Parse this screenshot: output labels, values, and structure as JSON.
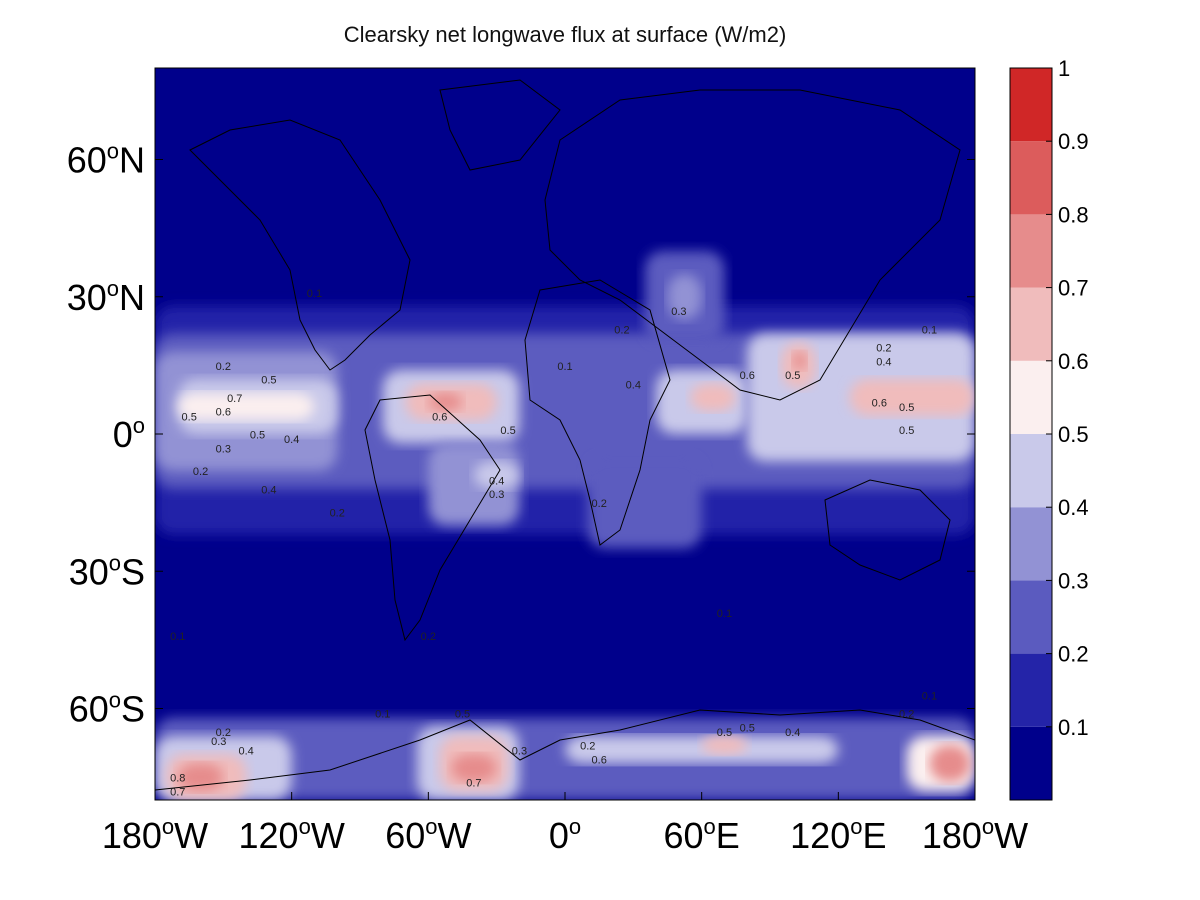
{
  "chart_data": {
    "type": "heatmap",
    "title": "Clearsky net longwave flux at surface (W/m2)",
    "x_ticks": [
      {
        "value": -180,
        "label": "180",
        "suffix": "W"
      },
      {
        "value": -120,
        "label": "120",
        "suffix": "W"
      },
      {
        "value": -60,
        "label": "60",
        "suffix": "W"
      },
      {
        "value": 0,
        "label": "0",
        "suffix": ""
      },
      {
        "value": 60,
        "label": "60",
        "suffix": "E"
      },
      {
        "value": 120,
        "label": "120",
        "suffix": "E"
      },
      {
        "value": 180,
        "label": "180",
        "suffix": "W"
      }
    ],
    "y_ticks": [
      {
        "value": 60,
        "label": "60",
        "suffix": "N"
      },
      {
        "value": 30,
        "label": "30",
        "suffix": "N"
      },
      {
        "value": 0,
        "label": "0",
        "suffix": ""
      },
      {
        "value": -30,
        "label": "30",
        "suffix": "S"
      },
      {
        "value": -60,
        "label": "60",
        "suffix": "S"
      }
    ],
    "xlim": [
      -180,
      180
    ],
    "ylim": [
      -80,
      80
    ],
    "colorbar": {
      "levels": [
        0.1,
        0.2,
        0.3,
        0.4,
        0.5,
        0.6,
        0.7,
        0.8,
        0.9,
        1
      ],
      "labels": [
        "0.1",
        "0.2",
        "0.3",
        "0.4",
        "0.5",
        "0.6",
        "0.7",
        "0.8",
        "0.9",
        "1"
      ],
      "colors": [
        "#00008b",
        "#2424a8",
        "#5b5bbf",
        "#9292d4",
        "#c9c9ea",
        "#fbefef",
        "#f0bcbc",
        "#e68c8c",
        "#dc5c5c",
        "#d02727"
      ]
    },
    "regions": [
      {
        "lon": [
          -180,
          180
        ],
        "lat": [
          -80,
          80
        ],
        "level": 0
      },
      {
        "lon": [
          -180,
          180
        ],
        "lat": [
          -22,
          28
        ],
        "level": 1
      },
      {
        "lon": [
          -180,
          180
        ],
        "lat": [
          -12,
          22
        ],
        "level": 2
      },
      {
        "lon": [
          -180,
          -100
        ],
        "lat": [
          -8,
          18
        ],
        "level": 3
      },
      {
        "lon": [
          -170,
          -100
        ],
        "lat": [
          0,
          12
        ],
        "level": 4
      },
      {
        "lon": [
          -170,
          -110
        ],
        "lat": [
          3,
          9
        ],
        "level": 5
      },
      {
        "lon": [
          -80,
          -20
        ],
        "lat": [
          -2,
          14
        ],
        "level": 4
      },
      {
        "lon": [
          -70,
          -30
        ],
        "lat": [
          3,
          11
        ],
        "level": 6
      },
      {
        "lon": [
          -60,
          -45
        ],
        "lat": [
          5,
          9
        ],
        "level": 7
      },
      {
        "lon": [
          -60,
          -20
        ],
        "lat": [
          -20,
          -2
        ],
        "level": 3
      },
      {
        "lon": [
          -40,
          -20
        ],
        "lat": [
          -12,
          -6
        ],
        "level": 4
      },
      {
        "lon": [
          40,
          80
        ],
        "lat": [
          0,
          14
        ],
        "level": 4
      },
      {
        "lon": [
          55,
          75
        ],
        "lat": [
          5,
          11
        ],
        "level": 6
      },
      {
        "lon": [
          35,
          70
        ],
        "lat": [
          20,
          40
        ],
        "level": 2
      },
      {
        "lon": [
          45,
          60
        ],
        "lat": [
          25,
          35
        ],
        "level": 3
      },
      {
        "lon": [
          80,
          180
        ],
        "lat": [
          -6,
          22
        ],
        "level": 4
      },
      {
        "lon": [
          95,
          110
        ],
        "lat": [
          10,
          20
        ],
        "level": 6
      },
      {
        "lon": [
          100,
          106
        ],
        "lat": [
          14,
          18
        ],
        "level": 7
      },
      {
        "lon": [
          125,
          180
        ],
        "lat": [
          4,
          12
        ],
        "level": 6
      },
      {
        "lon": [
          10,
          60
        ],
        "lat": [
          -25,
          -5
        ],
        "level": 2
      },
      {
        "lon": [
          -180,
          180
        ],
        "lat": [
          -80,
          -62
        ],
        "level": 2
      },
      {
        "lon": [
          -180,
          -120
        ],
        "lat": [
          -80,
          -66
        ],
        "level": 4
      },
      {
        "lon": [
          -175,
          -140
        ],
        "lat": [
          -80,
          -70
        ],
        "level": 6
      },
      {
        "lon": [
          -170,
          -150
        ],
        "lat": [
          -78,
          -72
        ],
        "level": 7
      },
      {
        "lon": [
          -65,
          -20
        ],
        "lat": [
          -80,
          -64
        ],
        "level": 4
      },
      {
        "lon": [
          -55,
          -25
        ],
        "lat": [
          -78,
          -66
        ],
        "level": 6
      },
      {
        "lon": [
          -50,
          -30
        ],
        "lat": [
          -76,
          -70
        ],
        "level": 7
      },
      {
        "lon": [
          0,
          120
        ],
        "lat": [
          -72,
          -66
        ],
        "level": 4
      },
      {
        "lon": [
          60,
          80
        ],
        "lat": [
          -70,
          -66
        ],
        "level": 6
      },
      {
        "lon": [
          150,
          180
        ],
        "lat": [
          -78,
          -66
        ],
        "level": 5
      },
      {
        "lon": [
          160,
          178
        ],
        "lat": [
          -76,
          -68
        ],
        "level": 7
      }
    ],
    "contour_labels": [
      {
        "lon": -110,
        "lat": 30,
        "text": "0.1"
      },
      {
        "lon": -150,
        "lat": 14,
        "text": "0.2"
      },
      {
        "lon": -150,
        "lat": 4,
        "text": "0.6"
      },
      {
        "lon": -145,
        "lat": 7,
        "text": "0.7"
      },
      {
        "lon": -130,
        "lat": 11,
        "text": "0.5"
      },
      {
        "lon": -165,
        "lat": 3,
        "text": "0.5"
      },
      {
        "lon": -150,
        "lat": -4,
        "text": "0.3"
      },
      {
        "lon": -135,
        "lat": -1,
        "text": "0.5"
      },
      {
        "lon": -120,
        "lat": -2,
        "text": "0.4"
      },
      {
        "lon": -160,
        "lat": -9,
        "text": "0.2"
      },
      {
        "lon": -130,
        "lat": -13,
        "text": "0.4"
      },
      {
        "lon": -100,
        "lat": -18,
        "text": "0.2"
      },
      {
        "lon": -55,
        "lat": 3,
        "text": "0.6"
      },
      {
        "lon": -25,
        "lat": 0,
        "text": "0.5"
      },
      {
        "lon": -30,
        "lat": -11,
        "text": "0.4"
      },
      {
        "lon": -30,
        "lat": -14,
        "text": "0.3"
      },
      {
        "lon": 15,
        "lat": -16,
        "text": "0.2"
      },
      {
        "lon": 50,
        "lat": 26,
        "text": "0.3"
      },
      {
        "lon": 25,
        "lat": 22,
        "text": "0.2"
      },
      {
        "lon": 30,
        "lat": 10,
        "text": "0.4"
      },
      {
        "lon": 80,
        "lat": 12,
        "text": "0.6"
      },
      {
        "lon": 100,
        "lat": 12,
        "text": "0.5"
      },
      {
        "lon": 140,
        "lat": 18,
        "text": "0.2"
      },
      {
        "lon": 140,
        "lat": 15,
        "text": "0.4"
      },
      {
        "lon": 138,
        "lat": 6,
        "text": "0.6"
      },
      {
        "lon": 150,
        "lat": 5,
        "text": "0.5"
      },
      {
        "lon": 150,
        "lat": 0,
        "text": "0.5"
      },
      {
        "lon": 0,
        "lat": 14,
        "text": "0.1"
      },
      {
        "lon": 160,
        "lat": 22,
        "text": "0.1"
      },
      {
        "lon": -150,
        "lat": -66,
        "text": "0.2"
      },
      {
        "lon": -152,
        "lat": -68,
        "text": "0.3"
      },
      {
        "lon": -140,
        "lat": -70,
        "text": "0.4"
      },
      {
        "lon": -170,
        "lat": -76,
        "text": "0.8"
      },
      {
        "lon": -170,
        "lat": -79,
        "text": "0.7"
      },
      {
        "lon": -45,
        "lat": -62,
        "text": "0.5"
      },
      {
        "lon": -40,
        "lat": -77,
        "text": "0.7"
      },
      {
        "lon": -20,
        "lat": -70,
        "text": "0.3"
      },
      {
        "lon": 10,
        "lat": -69,
        "text": "0.2"
      },
      {
        "lon": 15,
        "lat": -72,
        "text": "0.6"
      },
      {
        "lon": 70,
        "lat": -66,
        "text": "0.5"
      },
      {
        "lon": 80,
        "lat": -65,
        "text": "0.5"
      },
      {
        "lon": 100,
        "lat": -66,
        "text": "0.4"
      },
      {
        "lon": 150,
        "lat": -62,
        "text": "0.2"
      },
      {
        "lon": 160,
        "lat": -58,
        "text": "0.1"
      },
      {
        "lon": -80,
        "lat": -62,
        "text": "0.1"
      },
      {
        "lon": -60,
        "lat": -45,
        "text": "0.2"
      },
      {
        "lon": 70,
        "lat": -40,
        "text": "0.1"
      },
      {
        "lon": -170,
        "lat": -45,
        "text": "0.1"
      }
    ]
  }
}
